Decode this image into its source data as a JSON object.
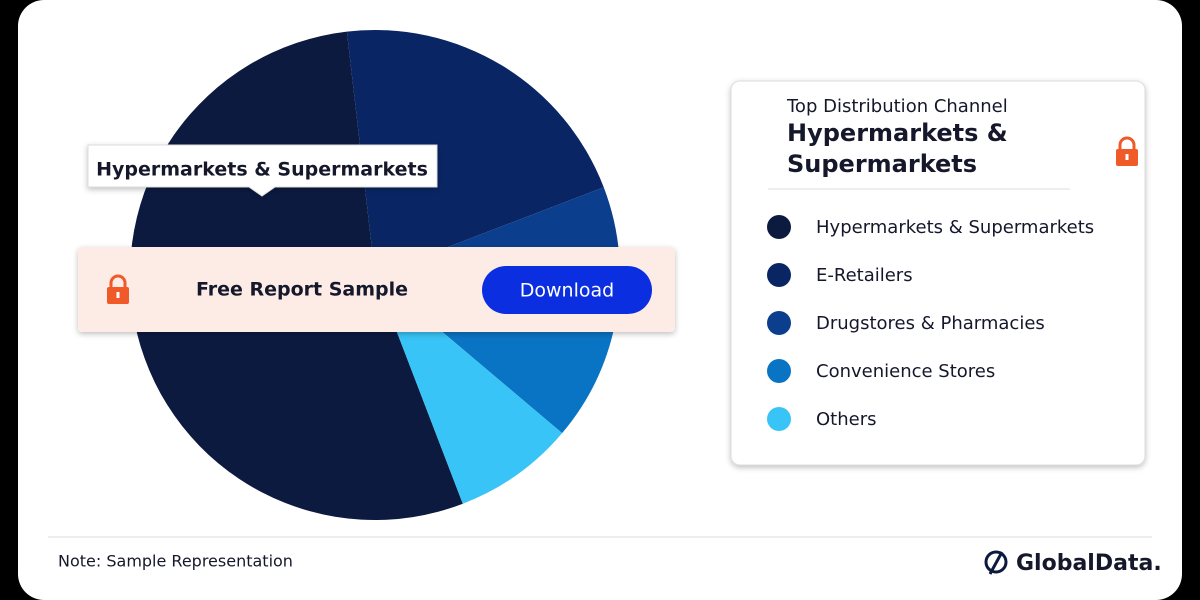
{
  "chart_data": {
    "type": "pie",
    "callout": "Hypermarkets & Supermarkets",
    "categories": [
      "Hypermarkets & Supermarkets",
      "E-Retailers",
      "Drugstores & Pharmacies",
      "Convenience Stores",
      "Others"
    ],
    "values": [
      54,
      21,
      9,
      8,
      8
    ],
    "colors": [
      "#0c1a40",
      "#0a2563",
      "#0b3f8e",
      "#0a74c4",
      "#38c4f6"
    ]
  },
  "banner": {
    "text": "Free Report Sample",
    "button": "Download"
  },
  "panel": {
    "subtitle": "Top Distribution Channel",
    "title_lines": [
      "Hypermarkets &",
      "Supermarkets"
    ]
  },
  "note": "Note: Sample Representation",
  "logo": "GlobalData."
}
